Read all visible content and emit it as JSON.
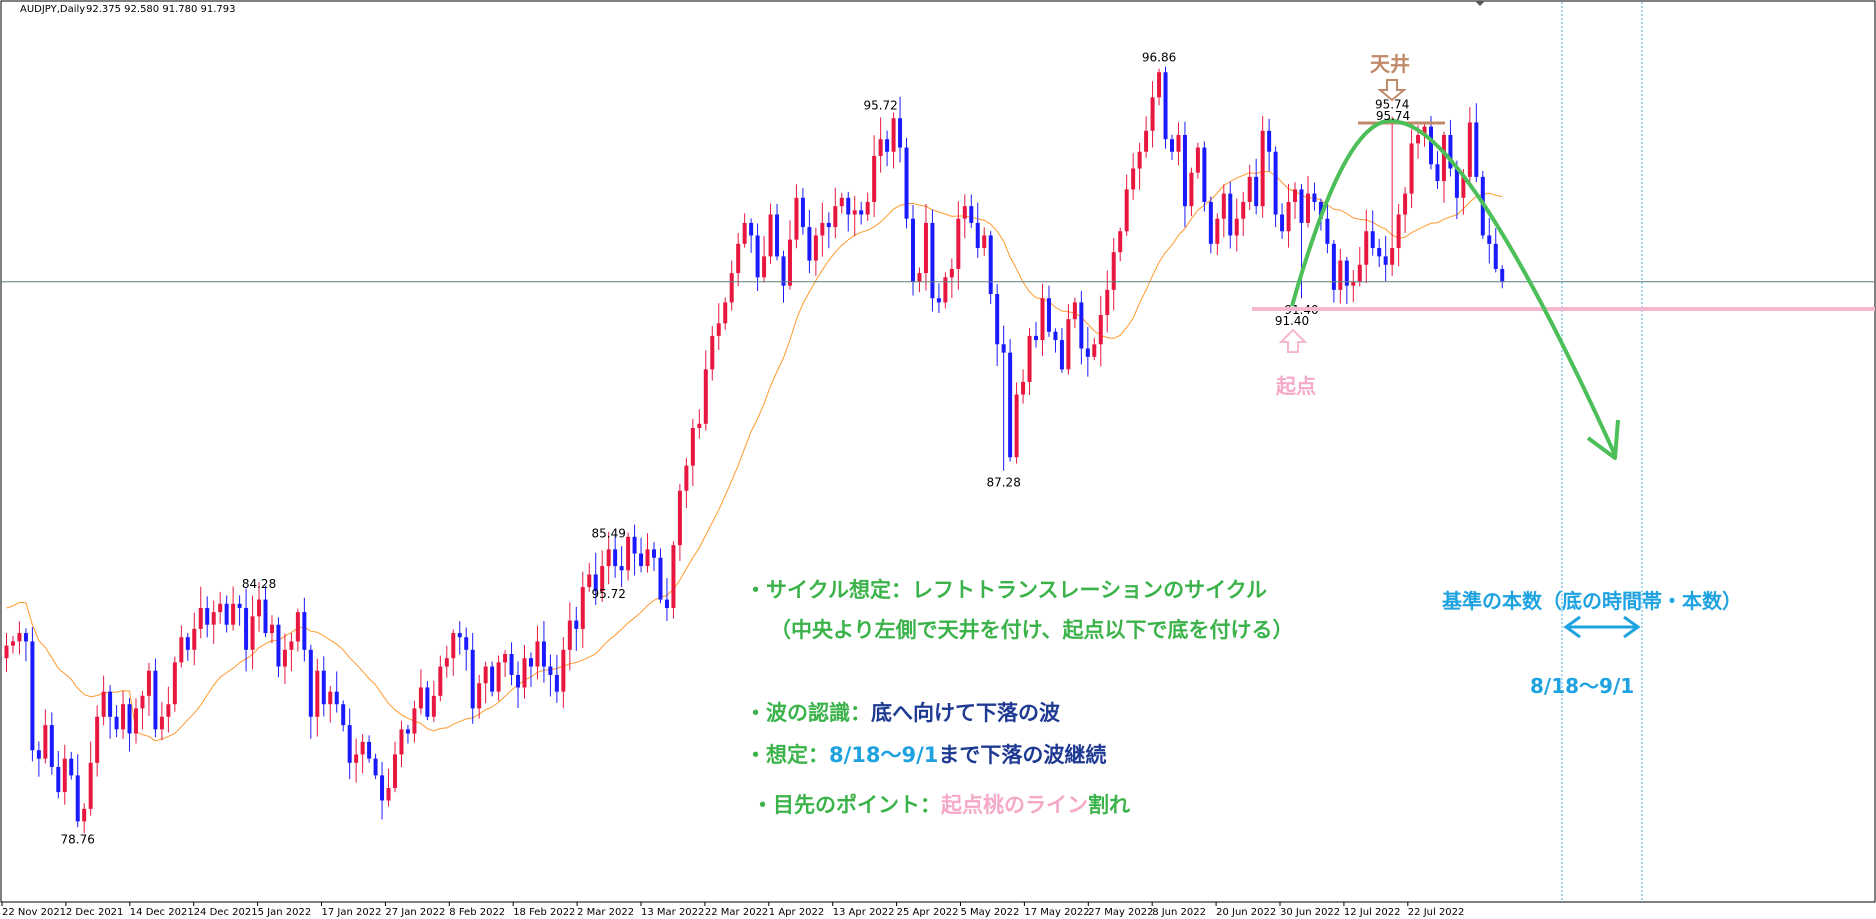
{
  "header": {
    "symbol_label": "AUDJPY,Daily",
    "ohlc": "92.375 92.580 91.780 91.793"
  },
  "colors": {
    "up": "#e8173f",
    "down": "#1a1aff",
    "ma": "#ff9a2e",
    "price_line": "#5e7f7a",
    "green_arc": "#4cbf59",
    "pink_line": "#f6b8d0",
    "top_brown": "#c08a6a",
    "cyan_dash": "#4aaee8"
  },
  "labels": {
    "tenjou": "天井",
    "kiten": "起点",
    "top_value": "95.74",
    "start_value": "91.40",
    "base_label": "基準の本数（底の時間帯・本数）",
    "range_label": "8/18〜9/1"
  },
  "notes": {
    "cycle_prefix": "・サイクル想定：",
    "cycle_text": "レフトトランスレーションのサイクル",
    "cycle_sub": "（中央より左側で天井を付け、起点以下で底を付ける）",
    "wave_prefix": "・波の認識：",
    "wave_text": "底へ向けて下落の波",
    "assume_prefix": "・想定：",
    "assume_dates": "8/18〜9/1",
    "assume_mid": "まで",
    "assume_text": "下落の波継続",
    "point_prefix": "・目先のポイント：",
    "point_pink": "起点桃のライン",
    "point_suffix": "割れ"
  },
  "chart_data": {
    "type": "candlestick",
    "symbol": "AUDJPY",
    "timeframe": "Daily",
    "ylim": [
      77.5,
      98.0
    ],
    "current_price": 91.793,
    "x_tick_labels": [
      "22 Nov 2021",
      "2 Dec 2021",
      "14 Dec 2021",
      "24 Dec 2021",
      "5 Jan 2022",
      "17 Jan 2022",
      "27 Jan 2022",
      "8 Feb 2022",
      "18 Feb 2022",
      "2 Mar 2022",
      "13 Mar 2022",
      "22 Mar 2022",
      "1 Apr 2022",
      "13 Apr 2022",
      "25 Apr 2022",
      "5 May 2022",
      "17 May 2022",
      "27 May 2022",
      "8 Jun 2022",
      "20 Jun 2022",
      "30 Jun 2022",
      "12 Jul 2022",
      "22 Jul 2022"
    ],
    "annotated_prices": [
      {
        "value": 78.76,
        "bar": 11
      },
      {
        "value": 84.28,
        "bar": 39
      },
      {
        "value": 85.49,
        "bar": 93
      },
      {
        "value": 95.72,
        "bar": 93,
        "below": true
      },
      {
        "value": 95.72,
        "bar": 135
      },
      {
        "value": 87.28,
        "bar": 154
      },
      {
        "value": 96.86,
        "bar": 178
      },
      {
        "value": 91.4,
        "bar": 200
      },
      {
        "value": 95.74,
        "bar": 214
      }
    ],
    "closes": [
      83.1,
      83.2,
      83.4,
      83.2,
      80.6,
      80.4,
      81.2,
      80.2,
      79.6,
      80.4,
      80.0,
      78.9,
      79.2,
      80.3,
      81.4,
      82.0,
      81.4,
      81.1,
      81.7,
      81.0,
      81.6,
      81.9,
      82.5,
      81.1,
      81.4,
      81.7,
      82.7,
      83.3,
      83.0,
      83.5,
      84.0,
      83.6,
      83.9,
      84.1,
      83.6,
      84.1,
      84.0,
      83.0,
      83.8,
      84.2,
      83.4,
      83.6,
      82.6,
      83.0,
      83.2,
      83.9,
      83.0,
      81.4,
      82.5,
      81.7,
      82.0,
      81.7,
      81.2,
      80.3,
      80.5,
      80.8,
      80.4,
      80.0,
      79.4,
      79.7,
      80.5,
      81.1,
      81.0,
      81.6,
      82.1,
      81.4,
      81.9,
      82.6,
      82.8,
      83.4,
      83.3,
      83.0,
      81.6,
      82.2,
      82.6,
      82.0,
      82.7,
      82.9,
      82.4,
      82.1,
      82.8,
      82.6,
      83.2,
      82.6,
      82.4,
      82.0,
      83.0,
      83.7,
      83.5,
      84.5,
      84.8,
      84.4,
      85.0,
      85.4,
      85.0,
      84.9,
      85.7,
      85.3,
      85.0,
      85.4,
      85.2,
      84.2,
      84.0,
      85.5,
      86.8,
      87.4,
      88.3,
      88.4,
      89.7,
      90.5,
      90.8,
      91.3,
      92.0,
      92.7,
      93.2,
      92.9,
      91.9,
      92.4,
      93.4,
      92.4,
      91.7,
      92.8,
      93.8,
      93.1,
      92.3,
      92.9,
      93.2,
      93.1,
      93.6,
      93.8,
      93.4,
      93.5,
      93.4,
      93.7,
      94.8,
      95.2,
      94.9,
      95.7,
      95.0,
      93.3,
      91.8,
      92.0,
      93.2,
      91.4,
      91.3,
      91.9,
      92.1,
      93.3,
      93.6,
      93.2,
      92.6,
      92.9,
      91.5,
      90.3,
      90.1,
      87.6,
      89.1,
      89.4,
      90.5,
      90.4,
      91.4,
      90.6,
      90.4,
      89.7,
      90.9,
      91.3,
      90.2,
      90.0,
      90.3,
      91.0,
      91.6,
      92.5,
      93.0,
      94.0,
      94.5,
      94.9,
      95.4,
      96.2,
      96.8,
      95.2,
      94.9,
      95.3,
      93.6,
      94.4,
      95.0,
      93.7,
      92.7,
      93.3,
      93.9,
      92.9,
      93.3,
      93.7,
      94.3,
      93.6,
      95.4,
      94.9,
      93.4,
      93.0,
      93.7,
      94.0,
      93.2,
      93.9,
      93.7,
      93.3,
      92.7,
      91.6,
      92.3,
      91.7,
      91.8,
      92.2,
      93.0,
      92.6,
      92.4,
      92.2,
      92.6,
      93.4,
      93.9,
      95.1,
      95.3,
      95.5,
      94.6,
      94.2,
      95.3,
      94.5,
      93.8,
      94.3,
      95.6,
      94.3,
      92.9,
      92.7,
      92.1,
      91.8
    ]
  }
}
